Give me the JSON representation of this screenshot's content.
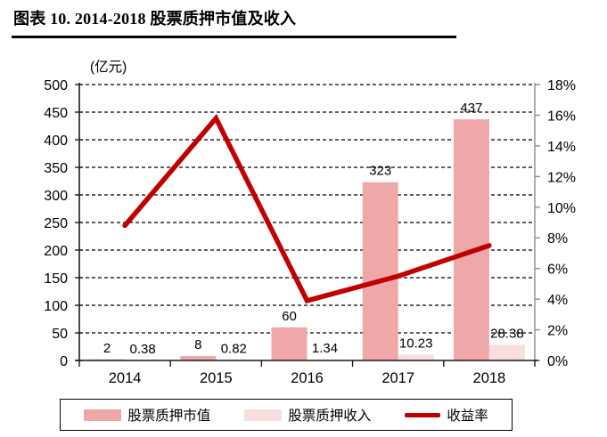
{
  "page": {
    "title": "图表 10. 2014-2018 股票质押市值及收入"
  },
  "chart_data": {
    "type": "combo-bar-line",
    "title": "图表 10. 2014-2018 股票质押市值及收入",
    "unit_label": "(亿元)",
    "categories": [
      "2014",
      "2015",
      "2016",
      "2017",
      "2018"
    ],
    "series": [
      {
        "name": "股票质押市值",
        "type": "bar",
        "axis": "left",
        "color": "#EFA8A8",
        "values": [
          2,
          8,
          60,
          323,
          437
        ],
        "labels": [
          "2",
          "8",
          "60",
          "323",
          "437"
        ]
      },
      {
        "name": "股票质押收入",
        "type": "bar",
        "axis": "left",
        "color": "#F8DEDE",
        "values": [
          0.38,
          0.82,
          1.34,
          10.23,
          28.38
        ],
        "labels": [
          "0.38",
          "0.82",
          "1.34",
          "10.23",
          "28.38"
        ]
      },
      {
        "name": "收益率",
        "type": "line",
        "axis": "right",
        "color": "#C00000",
        "values_pct": [
          8.8,
          15.8,
          3.9,
          5.5,
          7.5
        ]
      }
    ],
    "left_axis": {
      "min": 0,
      "max": 500,
      "step": 50,
      "ticks": [
        "0",
        "50",
        "100",
        "150",
        "200",
        "250",
        "300",
        "350",
        "400",
        "450",
        "500"
      ]
    },
    "right_axis": {
      "min": 0,
      "max": 18,
      "step": 2,
      "ticks": [
        "0%",
        "2%",
        "4%",
        "6%",
        "8%",
        "10%",
        "12%",
        "14%",
        "16%",
        "18%"
      ]
    },
    "grid": "horizontal-dashed",
    "legend_position": "bottom"
  },
  "legend": {
    "items": [
      {
        "label": "股票质押市值",
        "kind": "bar",
        "color": "#EFA8A8"
      },
      {
        "label": "股票质押收入",
        "kind": "bar",
        "color": "#F8DEDE"
      },
      {
        "label": "收益率",
        "kind": "line",
        "color": "#C00000"
      }
    ]
  },
  "colors": {
    "bar_market_value": "#EFA8A8",
    "bar_income": "#F8DEDE",
    "yield_line": "#C00000",
    "axis_primary": "#1a1a1a",
    "axis_secondary": "#8C8C8C",
    "gridline": "#000000",
    "text": "#000000"
  }
}
